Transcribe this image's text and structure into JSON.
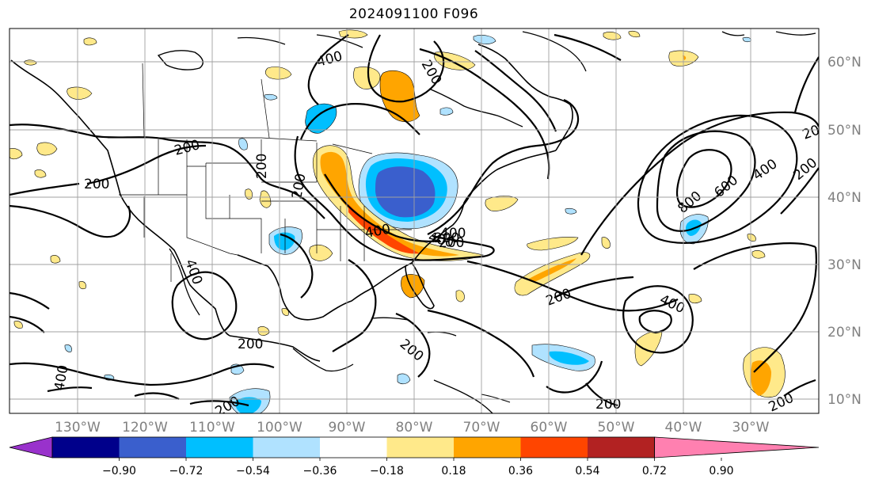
{
  "title": "2024091100 F096",
  "map": {
    "lon_labels": [
      "130°W",
      "120°W",
      "110°W",
      "100°W",
      "90°W",
      "80°W",
      "70°W",
      "60°W",
      "50°W",
      "40°W",
      "30°W"
    ],
    "lat_labels": [
      "60°N",
      "50°N",
      "40°N",
      "30°N",
      "20°N",
      "10°N"
    ],
    "contour_labels": [
      "400",
      "200",
      "200",
      "200",
      "200",
      "200",
      "400",
      "400",
      "400",
      "200",
      "200",
      "200",
      "200",
      "400",
      "800",
      "600",
      "400",
      "200",
      "200",
      "200",
      "400",
      "200",
      "200",
      "400",
      "200"
    ]
  },
  "colorbar": {
    "ticks": [
      "−0.90",
      "−0.72",
      "−0.54",
      "−0.36",
      "−0.18",
      "0.18",
      "0.36",
      "0.54",
      "0.72",
      "0.90"
    ],
    "colors": [
      "#9932CC",
      "#00008B",
      "#3A5FCD",
      "#00BFFF",
      "#B0E2FF",
      "#FFFFFF",
      "#FFE98A",
      "#FFA500",
      "#FF4500",
      "#B22222",
      "#FF80B0"
    ]
  }
}
